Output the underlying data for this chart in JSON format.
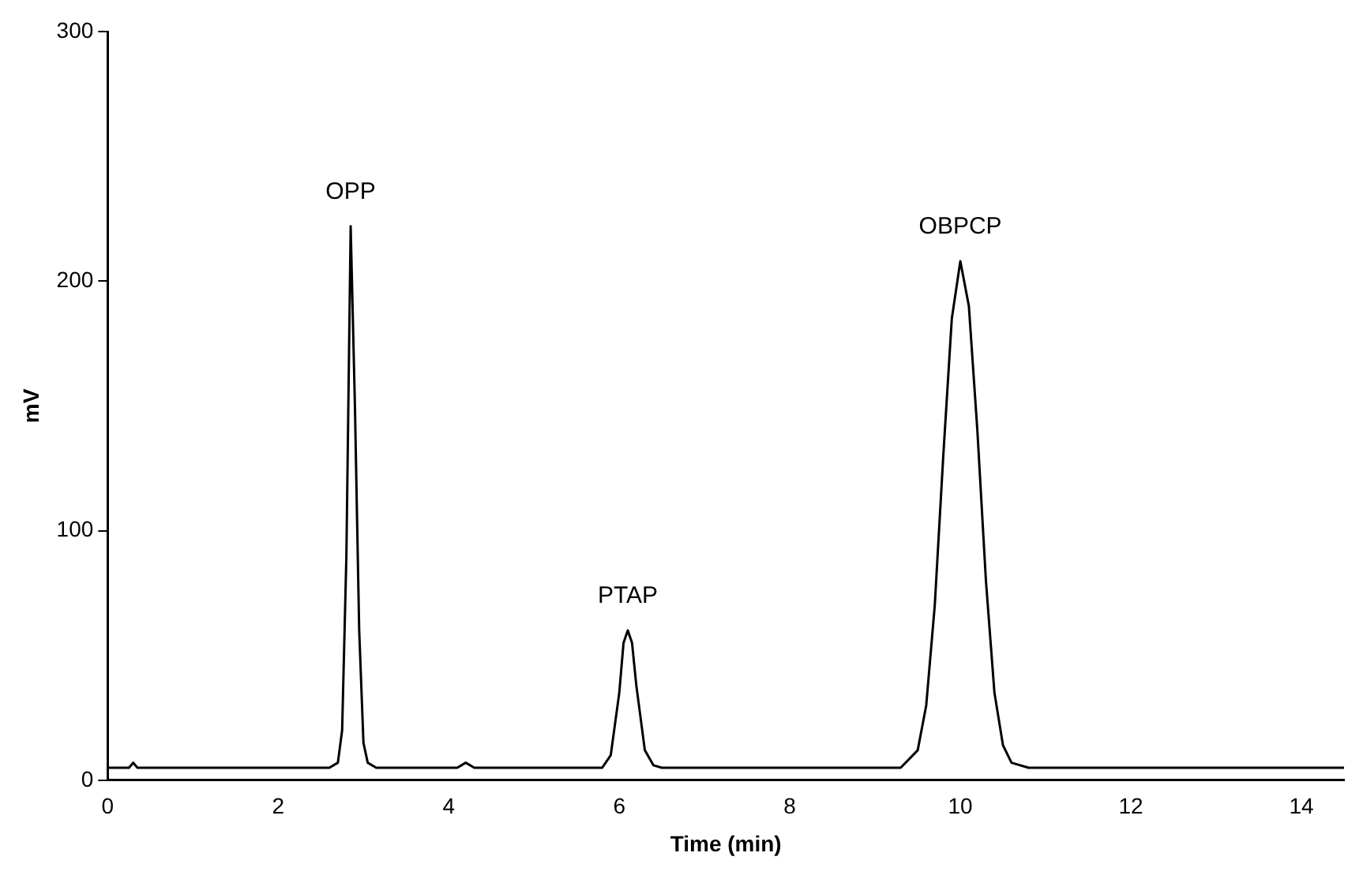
{
  "chart_data": {
    "type": "line",
    "xlabel": "Time (min)",
    "ylabel": "mV",
    "x": [
      0,
      0.25,
      0.3,
      0.35,
      0.5,
      2.6,
      2.7,
      2.75,
      2.8,
      2.85,
      2.9,
      2.95,
      3.0,
      3.05,
      3.15,
      4.1,
      4.2,
      4.3,
      5.8,
      5.9,
      6.0,
      6.05,
      6.1,
      6.15,
      6.2,
      6.3,
      6.4,
      6.5,
      9.3,
      9.5,
      9.6,
      9.7,
      9.8,
      9.9,
      10.0,
      10.1,
      10.2,
      10.3,
      10.4,
      10.5,
      10.6,
      10.8,
      14.5
    ],
    "series": [
      {
        "color": "#000000",
        "values": [
          5,
          5,
          7,
          5,
          5,
          5,
          7,
          20,
          90,
          222,
          150,
          60,
          15,
          7,
          5,
          5,
          7,
          5,
          5,
          10,
          35,
          55,
          60,
          55,
          38,
          12,
          6,
          5,
          5,
          12,
          30,
          70,
          130,
          185,
          208,
          190,
          140,
          80,
          35,
          14,
          7,
          5,
          5
        ]
      }
    ],
    "xlim": [
      0,
      14.5
    ],
    "xticks": [
      0,
      2,
      4,
      6,
      8,
      10,
      12,
      14
    ],
    "ylim": [
      0,
      300
    ],
    "yticks": [
      0,
      100,
      200,
      300
    ],
    "grid": false,
    "legend": false,
    "marker": "none",
    "line_style": "solid",
    "annotations": [
      {
        "text": "OPP",
        "x": 2.85,
        "y": 222
      },
      {
        "text": "PTAP",
        "x": 6.1,
        "y": 60
      },
      {
        "text": "OBPCP",
        "x": 10.0,
        "y": 208
      }
    ]
  }
}
